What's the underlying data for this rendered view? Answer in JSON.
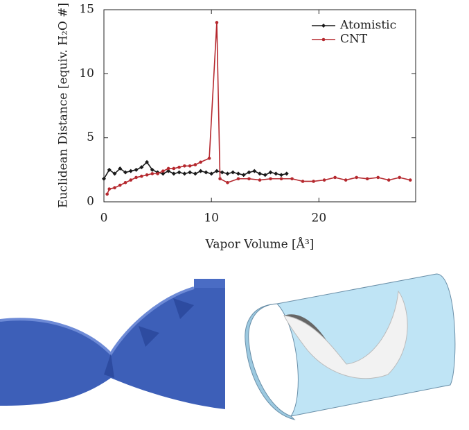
{
  "chart_data": {
    "type": "line",
    "xlabel": "Vapor Volume [Å³]",
    "ylabel": "Euclidean Distance [equiv. H₂O #]",
    "xlim": [
      0,
      29
    ],
    "xticks": [
      0,
      10,
      20
    ],
    "ylim": [
      0,
      15
    ],
    "yticks": [
      0,
      5,
      10,
      15
    ],
    "legend": "upper right",
    "series": [
      {
        "name": "Atomistic",
        "color": "#1a1a1a",
        "marker": "diamond",
        "x": [
          0,
          0.5,
          1,
          1.5,
          2,
          2.5,
          3,
          3.5,
          4,
          4.5,
          5,
          5.5,
          6,
          6.5,
          7,
          7.5,
          8,
          8.5,
          9,
          9.5,
          10,
          10.5,
          11,
          11.5,
          12,
          12.5,
          13,
          13.5,
          14,
          14.5,
          15,
          15.5,
          16,
          16.5,
          17
        ],
        "values": [
          1.8,
          2.5,
          2.2,
          2.6,
          2.3,
          2.4,
          2.5,
          2.7,
          3.1,
          2.5,
          2.3,
          2.2,
          2.4,
          2.2,
          2.3,
          2.2,
          2.3,
          2.2,
          2.4,
          2.3,
          2.2,
          2.4,
          2.3,
          2.2,
          2.3,
          2.2,
          2.1,
          2.3,
          2.4,
          2.2,
          2.1,
          2.3,
          2.2,
          2.1,
          2.2
        ]
      },
      {
        "name": "CNT",
        "color": "#b5282e",
        "marker": "circle",
        "x": [
          0.3,
          0.5,
          1,
          1.5,
          2,
          2.5,
          3,
          3.5,
          4,
          4.5,
          5,
          5.5,
          6,
          6.5,
          7,
          7.5,
          8,
          8.5,
          9,
          9.8,
          10.5,
          10.8,
          11.5,
          12.5,
          13.5,
          14.5,
          15.5,
          16.5,
          17.5,
          18.5,
          19.5,
          20.5,
          21.5,
          22.5,
          23.5,
          24.5,
          25.5,
          26.5,
          27.5,
          28.5
        ],
        "values": [
          0.6,
          1.0,
          1.1,
          1.3,
          1.5,
          1.7,
          1.9,
          2.0,
          2.1,
          2.2,
          2.2,
          2.4,
          2.6,
          2.6,
          2.7,
          2.8,
          2.8,
          2.9,
          3.1,
          3.4,
          14.0,
          1.8,
          1.5,
          1.8,
          1.8,
          1.7,
          1.8,
          1.8,
          1.8,
          1.6,
          1.6,
          1.7,
          1.9,
          1.7,
          1.9,
          1.8,
          1.9,
          1.7,
          1.9,
          1.7
        ]
      }
    ]
  }
}
